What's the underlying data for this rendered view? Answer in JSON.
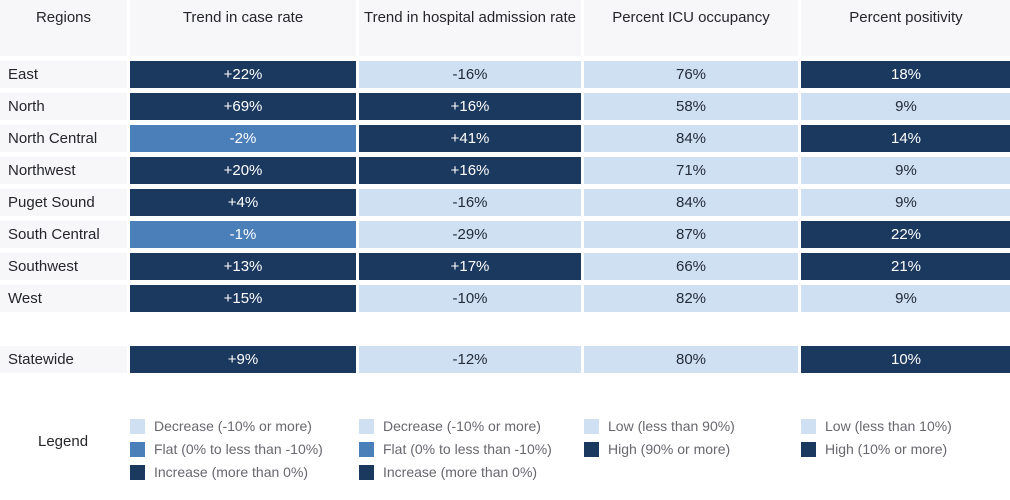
{
  "columns": {
    "regions": "Regions",
    "case_rate": "Trend in case rate",
    "hospital_admission": "Trend in hospital admission rate",
    "icu_occupancy": "Percent ICU occupancy",
    "positivity": "Percent positivity"
  },
  "rows": [
    {
      "region": "East",
      "case_rate": {
        "value": "+22%",
        "category": "increase"
      },
      "hospital_admission": {
        "value": "-16%",
        "category": "decrease"
      },
      "icu_occupancy": {
        "value": "76%",
        "category": "low"
      },
      "positivity": {
        "value": "18%",
        "category": "high"
      }
    },
    {
      "region": "North",
      "case_rate": {
        "value": "+69%",
        "category": "increase"
      },
      "hospital_admission": {
        "value": "+16%",
        "category": "increase"
      },
      "icu_occupancy": {
        "value": "58%",
        "category": "low"
      },
      "positivity": {
        "value": "9%",
        "category": "low"
      }
    },
    {
      "region": "North Central",
      "case_rate": {
        "value": "-2%",
        "category": "flat"
      },
      "hospital_admission": {
        "value": "+41%",
        "category": "increase"
      },
      "icu_occupancy": {
        "value": "84%",
        "category": "low"
      },
      "positivity": {
        "value": "14%",
        "category": "high"
      }
    },
    {
      "region": "Northwest",
      "case_rate": {
        "value": "+20%",
        "category": "increase"
      },
      "hospital_admission": {
        "value": "+16%",
        "category": "increase"
      },
      "icu_occupancy": {
        "value": "71%",
        "category": "low"
      },
      "positivity": {
        "value": "9%",
        "category": "low"
      }
    },
    {
      "region": "Puget Sound",
      "case_rate": {
        "value": "+4%",
        "category": "increase"
      },
      "hospital_admission": {
        "value": "-16%",
        "category": "decrease"
      },
      "icu_occupancy": {
        "value": "84%",
        "category": "low"
      },
      "positivity": {
        "value": "9%",
        "category": "low"
      }
    },
    {
      "region": "South Central",
      "case_rate": {
        "value": "-1%",
        "category": "flat"
      },
      "hospital_admission": {
        "value": "-29%",
        "category": "decrease"
      },
      "icu_occupancy": {
        "value": "87%",
        "category": "low"
      },
      "positivity": {
        "value": "22%",
        "category": "high"
      }
    },
    {
      "region": "Southwest",
      "case_rate": {
        "value": "+13%",
        "category": "increase"
      },
      "hospital_admission": {
        "value": "+17%",
        "category": "increase"
      },
      "icu_occupancy": {
        "value": "66%",
        "category": "low"
      },
      "positivity": {
        "value": "21%",
        "category": "high"
      }
    },
    {
      "region": "West",
      "case_rate": {
        "value": "+15%",
        "category": "increase"
      },
      "hospital_admission": {
        "value": "-10%",
        "category": "decrease"
      },
      "icu_occupancy": {
        "value": "82%",
        "category": "low"
      },
      "positivity": {
        "value": "9%",
        "category": "low"
      }
    }
  ],
  "statewide": {
    "region": "Statewide",
    "case_rate": {
      "value": "+9%",
      "category": "increase"
    },
    "hospital_admission": {
      "value": "-12%",
      "category": "decrease"
    },
    "icu_occupancy": {
      "value": "80%",
      "category": "low"
    },
    "positivity": {
      "value": "10%",
      "category": "high"
    }
  },
  "legend": {
    "label": "Legend",
    "case_rate": {
      "items": [
        {
          "label": "Decrease (-10% or more)",
          "category": "decrease"
        },
        {
          "label": "Flat (0% to less than -10%)",
          "category": "flat"
        },
        {
          "label": "Increase (more than 0%)",
          "category": "increase"
        }
      ]
    },
    "hospital_admission": {
      "items": [
        {
          "label": "Decrease (-10% or more)",
          "category": "decrease"
        },
        {
          "label": "Flat (0% to less than -10%)",
          "category": "flat"
        },
        {
          "label": "Increase (more than 0%)",
          "category": "increase"
        }
      ]
    },
    "icu_occupancy": {
      "items": [
        {
          "label": "Low (less than 90%)",
          "category": "low"
        },
        {
          "label": "High (90% or more)",
          "category": "high"
        }
      ]
    },
    "positivity": {
      "items": [
        {
          "label": "Low (less than 10%)",
          "category": "low"
        },
        {
          "label": "High (10% or more)",
          "category": "high"
        }
      ]
    }
  },
  "colors": {
    "increase_high": "#1b395f",
    "flat": "#4b7fba",
    "decrease_low": "#cfe0f3",
    "row_label_bg": "#f7f7f9",
    "text_on_dark": "#ffffff",
    "text_on_light": "#222b38",
    "legend_text": "#67676e"
  },
  "chart_data": {
    "type": "table",
    "columns": [
      "Regions",
      "Trend in case rate",
      "Trend in hospital admission rate",
      "Percent ICU occupancy",
      "Percent positivity"
    ],
    "rows": [
      [
        "East",
        "+22%",
        "-16%",
        "76%",
        "18%"
      ],
      [
        "North",
        "+69%",
        "+16%",
        "58%",
        "9%"
      ],
      [
        "North Central",
        "-2%",
        "+41%",
        "84%",
        "14%"
      ],
      [
        "Northwest",
        "+20%",
        "+16%",
        "71%",
        "9%"
      ],
      [
        "Puget Sound",
        "+4%",
        "-16%",
        "84%",
        "9%"
      ],
      [
        "South Central",
        "-1%",
        "-29%",
        "87%",
        "22%"
      ],
      [
        "Southwest",
        "+13%",
        "+17%",
        "66%",
        "21%"
      ],
      [
        "West",
        "+15%",
        "-10%",
        "82%",
        "9%"
      ],
      [
        "Statewide",
        "+9%",
        "-12%",
        "80%",
        "10%"
      ]
    ],
    "cell_color_categories": [
      [
        "increase",
        "decrease",
        "low",
        "high"
      ],
      [
        "increase",
        "increase",
        "low",
        "low"
      ],
      [
        "flat",
        "increase",
        "low",
        "high"
      ],
      [
        "increase",
        "increase",
        "low",
        "low"
      ],
      [
        "increase",
        "decrease",
        "low",
        "low"
      ],
      [
        "flat",
        "decrease",
        "low",
        "high"
      ],
      [
        "increase",
        "increase",
        "low",
        "high"
      ],
      [
        "increase",
        "decrease",
        "low",
        "low"
      ],
      [
        "increase",
        "decrease",
        "low",
        "high"
      ]
    ],
    "legend": {
      "trend_columns": [
        "Decrease (-10% or more)",
        "Flat (0% to less than -10%)",
        "Increase (more than 0%)"
      ],
      "icu_column": [
        "Low (less than 90%)",
        "High (90% or more)"
      ],
      "positivity_column": [
        "Low (less than 10%)",
        "High (10% or more)"
      ]
    }
  }
}
